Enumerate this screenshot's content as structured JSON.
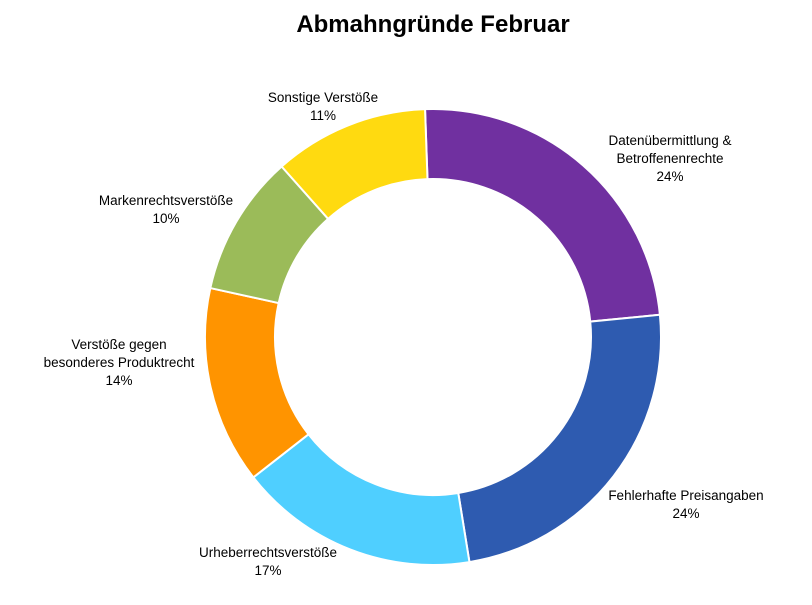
{
  "chart_data": {
    "type": "pie",
    "variant": "donut",
    "title": "Abmahngründe Februar",
    "legend": "none",
    "slices": [
      {
        "label": "Datenübermittlung & Betroffenenrechte",
        "label_lines": [
          "Datenübermittlung &",
          "Betroffenenrechte"
        ],
        "value": 24,
        "percent_label": "24%",
        "color": "#7030A0"
      },
      {
        "label": "Fehlerhafte Preisangaben",
        "label_lines": [
          "Fehlerhafte Preisangaben"
        ],
        "value": 24,
        "percent_label": "24%",
        "color": "#2E5BB0"
      },
      {
        "label": "Urheberrechtsverstöße",
        "label_lines": [
          "Urheberrechtsverstöße"
        ],
        "value": 17,
        "percent_label": "17%",
        "color": "#4FCFFF"
      },
      {
        "label": "Verstöße gegen besonderes Produktrecht",
        "label_lines": [
          "Verstöße gegen",
          "besonderes Produktrecht"
        ],
        "value": 14,
        "percent_label": "14%",
        "color": "#FF9400"
      },
      {
        "label": "Markenrechtsverstöße",
        "label_lines": [
          "Markenrechtsverstöße"
        ],
        "value": 10,
        "percent_label": "10%",
        "color": "#9BBB59"
      },
      {
        "label": "Sonstige Verstöße",
        "label_lines": [
          "Sonstige Verstöße"
        ],
        "value": 11,
        "percent_label": "11%",
        "color": "#FFDA10"
      }
    ]
  }
}
